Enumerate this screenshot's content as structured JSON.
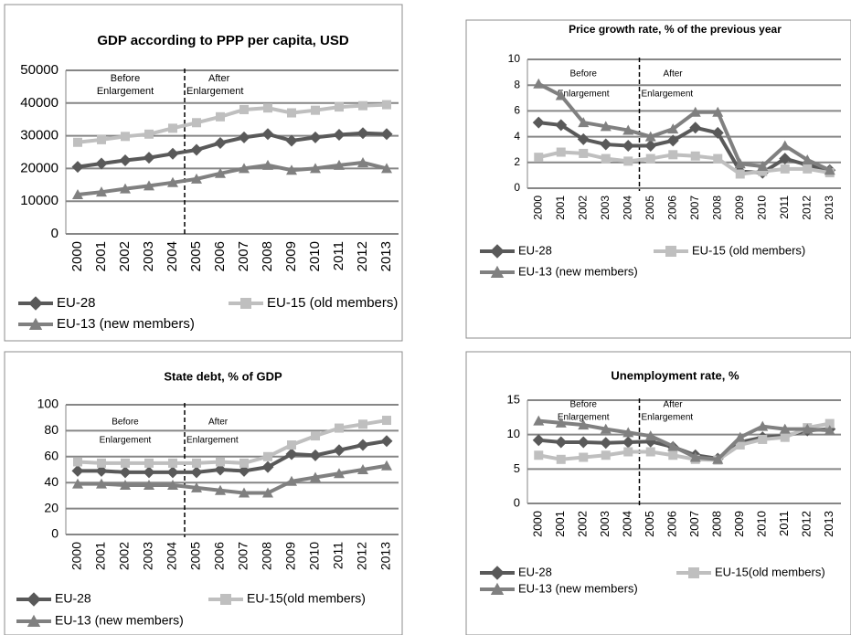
{
  "chart_data": [
    {
      "type": "line",
      "title": "GDP according to PPP per capita, USD",
      "categories": [
        "2000",
        "2001",
        "2002",
        "2003",
        "2004",
        "2005",
        "2006",
        "2007",
        "2008",
        "2009",
        "2010",
        "2011",
        "2012",
        "2013"
      ],
      "ylim": [
        0,
        50000
      ],
      "yticks": [
        0,
        10000,
        20000,
        30000,
        40000,
        50000
      ],
      "grid": true,
      "before_label": [
        "Before",
        "Enlargement"
      ],
      "after_label": [
        "After",
        "Enlargement"
      ],
      "series": [
        {
          "name": "EU-28",
          "color": "#595959",
          "marker": "diamond",
          "values": [
            20500,
            21500,
            22500,
            23300,
            24500,
            25700,
            27800,
            29500,
            30500,
            28500,
            29500,
            30300,
            30800,
            30500
          ]
        },
        {
          "name": "EU-15 (old members)",
          "color": "#bfbfbf",
          "marker": "square",
          "values": [
            28000,
            28800,
            29800,
            30500,
            32300,
            34000,
            35800,
            38000,
            38500,
            37000,
            37800,
            38800,
            39200,
            39500
          ]
        },
        {
          "name": "EU-13 (new members)",
          "color": "#808080",
          "marker": "triangle",
          "values": [
            12000,
            12800,
            13800,
            14700,
            15700,
            16800,
            18500,
            20000,
            21000,
            19500,
            20000,
            21000,
            21800,
            20000
          ]
        }
      ]
    },
    {
      "type": "line",
      "title": "Price growth rate, % of the previous year",
      "categories": [
        "2000",
        "2001",
        "2002",
        "2003",
        "2004",
        "2005",
        "2006",
        "2007",
        "2008",
        "2009",
        "2010",
        "2011",
        "2012",
        "2013"
      ],
      "ylim": [
        0,
        10
      ],
      "yticks": [
        0,
        2,
        4,
        6,
        8,
        10
      ],
      "grid": true,
      "before_label": [
        "Before",
        "Enlargement"
      ],
      "after_label": [
        "After",
        "Enlargement"
      ],
      "series": [
        {
          "name": "EU-28",
          "color": "#595959",
          "marker": "diamond",
          "values": [
            5.1,
            4.9,
            3.8,
            3.4,
            3.3,
            3.3,
            3.7,
            4.7,
            4.3,
            1.3,
            1.2,
            2.3,
            1.8,
            1.4
          ]
        },
        {
          "name": "EU-15 (old members)",
          "color": "#bfbfbf",
          "marker": "square",
          "values": [
            2.4,
            2.8,
            2.7,
            2.3,
            2.1,
            2.3,
            2.6,
            2.5,
            2.3,
            1.1,
            1.3,
            1.5,
            1.5,
            1.2
          ]
        },
        {
          "name": "EU-13 (new members)",
          "color": "#808080",
          "marker": "triangle",
          "values": [
            8.1,
            7.2,
            5.1,
            4.8,
            4.5,
            4.0,
            4.6,
            5.9,
            5.9,
            1.9,
            1.7,
            3.3,
            2.2,
            1.4
          ]
        }
      ]
    },
    {
      "type": "line",
      "title": "State debt, % of GDP",
      "categories": [
        "2000",
        "2001",
        "2002",
        "2003",
        "2004",
        "2005",
        "2006",
        "2007",
        "2008",
        "2009",
        "2010",
        "2011",
        "2012",
        "2013"
      ],
      "ylim": [
        0,
        100
      ],
      "yticks": [
        0,
        20,
        40,
        60,
        80,
        100
      ],
      "grid": true,
      "before_label": [
        "Before",
        "Enlargement"
      ],
      "after_label": [
        "After",
        "Enlargement"
      ],
      "series": [
        {
          "name": "EU-28",
          "color": "#595959",
          "marker": "diamond",
          "values": [
            49,
            49,
            48,
            48,
            48,
            48,
            50,
            49,
            52,
            62,
            61,
            65,
            69,
            72
          ]
        },
        {
          "name": "EU-15(old members)",
          "color": "#bfbfbf",
          "marker": "square",
          "values": [
            56,
            55,
            55,
            55,
            55,
            55,
            56,
            55,
            60,
            69,
            76,
            82,
            85,
            88
          ]
        },
        {
          "name": "EU-13 (new members)",
          "color": "#808080",
          "marker": "triangle",
          "values": [
            39,
            39,
            38,
            38,
            38,
            36,
            34,
            32,
            32,
            41,
            44,
            47,
            50,
            53
          ]
        }
      ]
    },
    {
      "type": "line",
      "title": "Unemployment rate, %",
      "categories": [
        "2000",
        "2001",
        "2002",
        "2003",
        "2004",
        "2005",
        "2006",
        "2007",
        "2008",
        "2009",
        "2010",
        "2011",
        "2012",
        "2013"
      ],
      "ylim": [
        0,
        15
      ],
      "yticks": [
        0,
        5,
        10,
        15
      ],
      "grid": true,
      "before_label": [
        "Before",
        "Enlargement"
      ],
      "after_label": [
        "After",
        "Enlargement"
      ],
      "series": [
        {
          "name": "EU-28",
          "color": "#595959",
          "marker": "diamond",
          "values": [
            9.2,
            8.9,
            8.9,
            8.8,
            8.9,
            9.0,
            8.2,
            7.0,
            6.5,
            8.9,
            9.6,
            9.8,
            10.6,
            10.8
          ]
        },
        {
          "name": "EU-15(old members)",
          "color": "#bfbfbf",
          "marker": "square",
          "values": [
            7.0,
            6.4,
            6.7,
            7.0,
            7.5,
            7.5,
            7.0,
            6.4,
            6.3,
            8.5,
            9.3,
            9.6,
            11.0,
            11.6
          ]
        },
        {
          "name": "EU-13 (new members)",
          "color": "#808080",
          "marker": "triangle",
          "values": [
            12.0,
            11.7,
            11.4,
            10.8,
            10.3,
            9.8,
            8.3,
            6.7,
            6.4,
            9.6,
            11.2,
            10.8,
            10.8,
            10.6
          ]
        }
      ]
    }
  ]
}
